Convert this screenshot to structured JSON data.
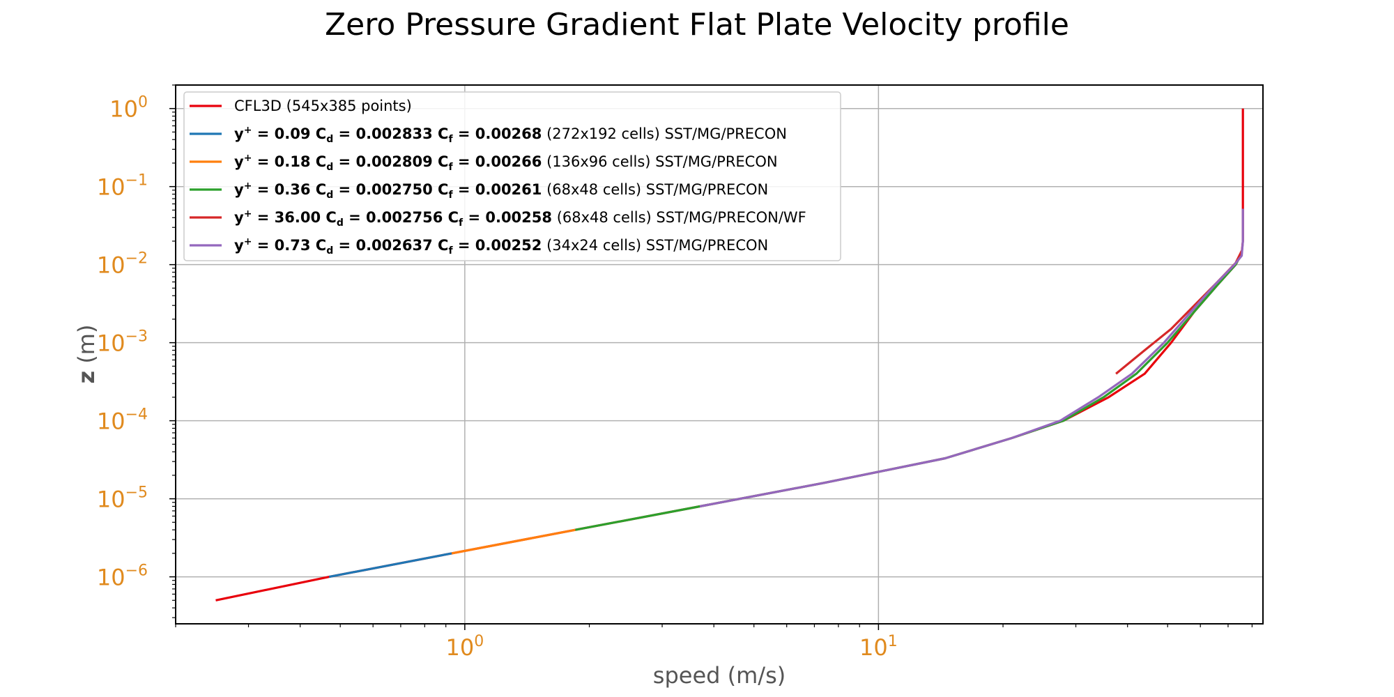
{
  "chart_data": {
    "type": "line",
    "title": "Zero Pressure Gradient Flat Plate Velocity profile",
    "xlabel": "speed (m/s)",
    "ylabel_var": "z",
    "ylabel_unit": "(m)",
    "x_scale": "log",
    "y_scale": "log",
    "xlim": [
      0.2,
      85
    ],
    "ylim": [
      2.5e-07,
      2.0
    ],
    "x_ticks": [
      {
        "value": 1,
        "base": "10",
        "exp": "0"
      },
      {
        "value": 10,
        "base": "10",
        "exp": "1"
      }
    ],
    "y_ticks": [
      {
        "value": 1,
        "base": "10",
        "exp": "0"
      },
      {
        "value": 0.1,
        "base": "10",
        "exp": "−1"
      },
      {
        "value": 0.01,
        "base": "10",
        "exp": "−2"
      },
      {
        "value": 0.001,
        "base": "10",
        "exp": "−3"
      },
      {
        "value": 0.0001,
        "base": "10",
        "exp": "−4"
      },
      {
        "value": 1e-05,
        "base": "10",
        "exp": "−5"
      },
      {
        "value": 1e-06,
        "base": "10",
        "exp": "−6"
      }
    ],
    "grid": true,
    "legend_position": "upper-left",
    "series": [
      {
        "name": "CFL3D (545x385 points)",
        "color": "#e8000b",
        "points": [
          [
            0.25,
            5e-07
          ],
          [
            0.47,
            1e-06
          ],
          [
            0.93,
            2e-06
          ],
          [
            1.85,
            4e-06
          ],
          [
            3.7,
            8e-06
          ],
          [
            7.4,
            1.6e-05
          ],
          [
            14.5,
            3.3e-05
          ],
          [
            21.0,
            6e-05
          ],
          [
            28.0,
            0.0001
          ],
          [
            36.0,
            0.0002
          ],
          [
            44.0,
            0.0004
          ],
          [
            51.0,
            0.001
          ],
          [
            58.0,
            0.0025
          ],
          [
            66.0,
            0.0055
          ],
          [
            73.0,
            0.01
          ],
          [
            75.5,
            0.014
          ],
          [
            76.0,
            0.02
          ],
          [
            76.0,
            0.1
          ],
          [
            76.0,
            1.0
          ]
        ]
      },
      {
        "name": "y+ = 0.09 Cd = 0.002833 Cf = 0.00268 (272x192 cells) SST/MG/PRECON",
        "label": {
          "yplus": "0.09",
          "cd": "0.002833",
          "cf": "0.00268",
          "note": " (272x192 cells) SST/MG/PRECON"
        },
        "color": "#1f77b4",
        "points": [
          [
            0.47,
            1e-06
          ],
          [
            0.93,
            2e-06
          ]
        ]
      },
      {
        "name": "y+ = 0.18 Cd = 0.002809 Cf = 0.00266 (136x96 cells) SST/MG/PRECON",
        "label": {
          "yplus": "0.18",
          "cd": "0.002809",
          "cf": "0.00266",
          "note": " (136x96 cells) SST/MG/PRECON"
        },
        "color": "#ff7f0e",
        "points": [
          [
            0.93,
            2e-06
          ],
          [
            1.85,
            4e-06
          ]
        ]
      },
      {
        "name": "y+ = 0.36 Cd = 0.002750 Cf = 0.00261 (68x48 cells) SST/MG/PRECON",
        "label": {
          "yplus": "0.36",
          "cd": "0.002750",
          "cf": "0.00261",
          "note": " (68x48 cells) SST/MG/PRECON"
        },
        "color": "#2ca02c",
        "points": [
          [
            1.85,
            4e-06
          ],
          [
            3.7,
            8e-06
          ],
          [
            7.4,
            1.6e-05
          ],
          [
            14.5,
            3.3e-05
          ],
          [
            21.0,
            6e-05
          ],
          [
            28.0,
            0.0001
          ],
          [
            35.0,
            0.0002
          ],
          [
            42.0,
            0.0004
          ],
          [
            50.0,
            0.001
          ],
          [
            58.0,
            0.0025
          ],
          [
            66.0,
            0.0055
          ],
          [
            73.0,
            0.01
          ],
          [
            75.5,
            0.014
          ]
        ]
      },
      {
        "name": "y+ = 36.00 Cd = 0.002756 Cf = 0.00258 (68x48 cells) SST/MG/PRECON/WF",
        "label": {
          "yplus": "36.00",
          "cd": "0.002756",
          "cf": "0.00258",
          "note": " (68x48 cells) SST/MG/PRECON/WF"
        },
        "color": "#d62728",
        "points": [
          [
            37.5,
            0.0004
          ],
          [
            44.0,
            0.0008
          ],
          [
            51.0,
            0.0015
          ],
          [
            58.0,
            0.003
          ],
          [
            66.0,
            0.006
          ],
          [
            73.0,
            0.0105
          ],
          [
            75.5,
            0.015
          ]
        ]
      },
      {
        "name": "y+ = 0.73 Cd = 0.002637 Cf = 0.00252 (34x24 cells) SST/MG/PRECON",
        "label": {
          "yplus": "0.73",
          "cd": "0.002637",
          "cf": "0.00252",
          "note": " (34x24 cells) SST/MG/PRECON"
        },
        "color": "#9467bd",
        "points": [
          [
            3.7,
            8e-06
          ],
          [
            7.4,
            1.6e-05
          ],
          [
            14.5,
            3.3e-05
          ],
          [
            21.0,
            6e-05
          ],
          [
            27.5,
            0.0001
          ],
          [
            34.0,
            0.0002
          ],
          [
            41.0,
            0.0004
          ],
          [
            49.0,
            0.001
          ],
          [
            57.0,
            0.0025
          ],
          [
            65.0,
            0.0055
          ],
          [
            72.5,
            0.01
          ],
          [
            75.5,
            0.013
          ],
          [
            76.0,
            0.02
          ],
          [
            76.0,
            0.052
          ]
        ]
      }
    ],
    "colors": {
      "tick_labels": "#e08a1e",
      "grid": "#b0b0b0",
      "axis_label": "#555555"
    }
  }
}
